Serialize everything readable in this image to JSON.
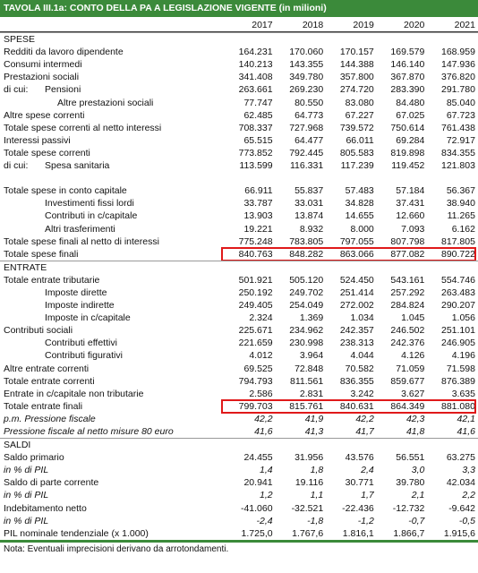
{
  "title": "TAVOLA III.1a: CONTO DELLA PA A LEGISLAZIONE VIGENTE (in milioni)",
  "columns": [
    2017,
    2018,
    2019,
    2020,
    2021
  ],
  "rows": [
    {
      "label": "SPESE"
    },
    {
      "label": "Redditi da lavoro dipendente",
      "values": [
        "164.231",
        "170.060",
        "170.157",
        "169.579",
        "168.959"
      ]
    },
    {
      "label": "Consumi intermedi",
      "values": [
        "140.213",
        "143.355",
        "144.388",
        "146.140",
        "147.936"
      ]
    },
    {
      "label": "Prestazioni sociali",
      "values": [
        "341.408",
        "349.780",
        "357.800",
        "367.870",
        "376.820"
      ]
    },
    {
      "prefix": "di cui:",
      "label": "Pensioni",
      "values": [
        "263.661",
        "269.230",
        "274.720",
        "283.390",
        "291.780"
      ]
    },
    {
      "label": "Altre prestazioni sociali",
      "values": [
        "77.747",
        "80.550",
        "83.080",
        "84.480",
        "85.040"
      ]
    },
    {
      "label": "Altre spese correnti",
      "values": [
        "62.485",
        "64.773",
        "67.227",
        "67.025",
        "67.723"
      ]
    },
    {
      "label": "Totale spese correnti al netto interessi",
      "values": [
        "708.337",
        "727.968",
        "739.572",
        "750.614",
        "761.438"
      ]
    },
    {
      "label": "Interessi passivi",
      "values": [
        "65.515",
        "64.477",
        "66.011",
        "69.284",
        "72.917"
      ]
    },
    {
      "label": "Totale spese correnti",
      "values": [
        "773.852",
        "792.445",
        "805.583",
        "819.898",
        "834.355"
      ]
    },
    {
      "prefix": "di cui:",
      "label": "Spesa sanitaria",
      "values": [
        "113.599",
        "116.331",
        "117.239",
        "119.452",
        "121.803"
      ]
    },
    {
      "label": "Totale spese in conto capitale",
      "values": [
        "66.911",
        "55.837",
        "57.483",
        "57.184",
        "56.367"
      ]
    },
    {
      "label": "Investimenti fissi lordi",
      "values": [
        "33.787",
        "33.031",
        "34.828",
        "37.431",
        "38.940"
      ]
    },
    {
      "label": "Contributi in c/capitale",
      "values": [
        "13.903",
        "13.874",
        "14.655",
        "12.660",
        "11.265"
      ]
    },
    {
      "label": "Altri trasferimenti",
      "values": [
        "19.221",
        "8.932",
        "8.000",
        "7.093",
        "6.162"
      ]
    },
    {
      "label": "Totale spese finali al netto di interessi",
      "values": [
        "775.248",
        "783.805",
        "797.055",
        "807.798",
        "817.805"
      ]
    },
    {
      "label": "Totale spese finali",
      "values": [
        "840.763",
        "848.282",
        "863.066",
        "877.082",
        "890.722"
      ]
    },
    {
      "label": "ENTRATE"
    },
    {
      "label": "Totale entrate tributarie",
      "values": [
        "501.921",
        "505.120",
        "524.450",
        "543.161",
        "554.746"
      ]
    },
    {
      "label": "Imposte dirette",
      "values": [
        "250.192",
        "249.702",
        "251.414",
        "257.292",
        "263.483"
      ]
    },
    {
      "label": "Imposte indirette",
      "values": [
        "249.405",
        "254.049",
        "272.002",
        "284.824",
        "290.207"
      ]
    },
    {
      "label": "Imposte in c/capitale",
      "values": [
        "2.324",
        "1.369",
        "1.034",
        "1.045",
        "1.056"
      ]
    },
    {
      "label": "Contributi sociali",
      "values": [
        "225.671",
        "234.962",
        "242.357",
        "246.502",
        "251.101"
      ]
    },
    {
      "label": "Contributi effettivi",
      "values": [
        "221.659",
        "230.998",
        "238.313",
        "242.376",
        "246.905"
      ]
    },
    {
      "label": "Contributi figurativi",
      "values": [
        "4.012",
        "3.964",
        "4.044",
        "4.126",
        "4.196"
      ]
    },
    {
      "label": "Altre entrate correnti",
      "values": [
        "69.525",
        "72.848",
        "70.582",
        "71.059",
        "71.598"
      ]
    },
    {
      "label": "Totale entrate correnti",
      "values": [
        "794.793",
        "811.561",
        "836.355",
        "859.677",
        "876.389"
      ]
    },
    {
      "label": "Entrate in c/capitale non tributarie",
      "values": [
        "2.586",
        "2.831",
        "3.242",
        "3.627",
        "3.635"
      ]
    },
    {
      "label": "Totale entrate finali",
      "values": [
        "799.703",
        "815.761",
        "840.631",
        "864.349",
        "881.080"
      ]
    },
    {
      "label": "p.m. Pressione fiscale",
      "values": [
        "42,2",
        "41,9",
        "42,2",
        "42,3",
        "42,1"
      ]
    },
    {
      "label": "Pressione fiscale al netto misure 80 euro",
      "values": [
        "41,6",
        "41,3",
        "41,7",
        "41,8",
        "41,6"
      ]
    },
    {
      "label": "SALDI"
    },
    {
      "label": "Saldo primario",
      "values": [
        "24.455",
        "31.956",
        "43.576",
        "56.551",
        "63.275"
      ]
    },
    {
      "label": "in % di PIL",
      "values": [
        "1,4",
        "1,8",
        "2,4",
        "3,0",
        "3,3"
      ]
    },
    {
      "label": "Saldo di parte corrente",
      "values": [
        "20.941",
        "19.116",
        "30.771",
        "39.780",
        "42.034"
      ]
    },
    {
      "label": "in % di PIL",
      "values": [
        "1,2",
        "1,1",
        "1,7",
        "2,1",
        "2,2"
      ]
    },
    {
      "label": "Indebitamento netto",
      "values": [
        "-41.060",
        "-32.521",
        "-22.436",
        "-12.732",
        "-9.642"
      ]
    },
    {
      "label": "in % di PIL",
      "values": [
        "-2,4",
        "-1,8",
        "-1,2",
        "-0,7",
        "-0,5"
      ]
    },
    {
      "label": "PIL nominale tendenziale (x 1.000)",
      "values": [
        "1.725,0",
        "1.767,6",
        "1.816,1",
        "1.866,7",
        "1.915,6"
      ]
    }
  ],
  "note": "Nota: Eventuali imprecisioni derivano da arrotondamenti."
}
